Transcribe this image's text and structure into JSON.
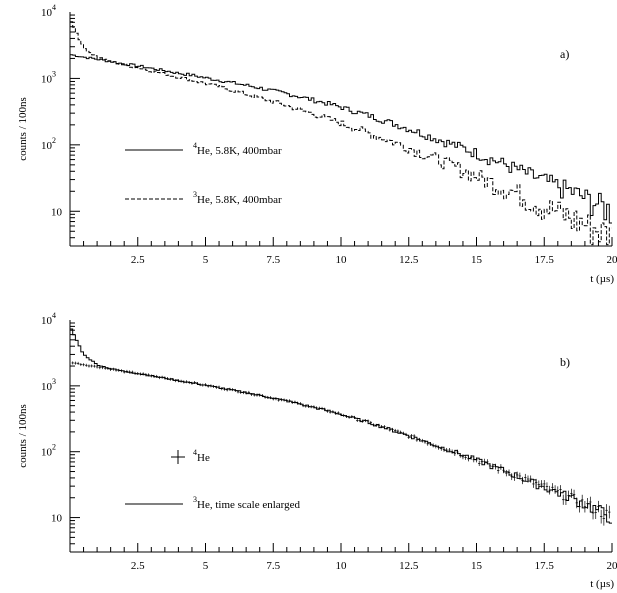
{
  "chart_data": [
    {
      "type": "line",
      "panel_label": "a)",
      "xlabel": "t (µs)",
      "ylabel": "counts / 100ns",
      "xlim": [
        0,
        20
      ],
      "ylim": [
        3,
        10000
      ],
      "yscale": "log",
      "grid": false,
      "legend_position": "center-left",
      "x_ticks": [
        "2.5",
        "5",
        "7.5",
        "10",
        "12.5",
        "15",
        "17.5",
        "20"
      ],
      "y_ticks": [
        {
          "value": 10,
          "base": "10",
          "exp": ""
        },
        {
          "value": 100,
          "base": "10",
          "exp": "2"
        },
        {
          "value": 1000,
          "base": "10",
          "exp": "3"
        },
        {
          "value": 10000,
          "base": "10",
          "exp": "4"
        }
      ],
      "series": [
        {
          "name_sup": "4",
          "name": "He, 5.8K, 400mbar",
          "style": "solid",
          "x": [
            0,
            0.5,
            1,
            1.5,
            2,
            2.5,
            3,
            3.5,
            4,
            4.5,
            5,
            5.5,
            6,
            6.5,
            7,
            7.5,
            8,
            8.5,
            9,
            9.5,
            10,
            10.5,
            11,
            11.5,
            12,
            12.5,
            13,
            13.5,
            14,
            14.5,
            15,
            15.5,
            16,
            16.5,
            17,
            17.5,
            18,
            18.5,
            19,
            19.5,
            20
          ],
          "values": [
            2300,
            2100,
            1950,
            1800,
            1650,
            1550,
            1420,
            1310,
            1200,
            1120,
            1020,
            940,
            860,
            790,
            720,
            650,
            590,
            530,
            470,
            420,
            370,
            320,
            280,
            240,
            205,
            175,
            148,
            125,
            106,
            90,
            75,
            62,
            52,
            43,
            35,
            29,
            24,
            20,
            16,
            13,
            10
          ]
        },
        {
          "name_sup": "3",
          "name": "He, 5.8K, 400mbar",
          "style": "dashed",
          "x": [
            0,
            0.5,
            1,
            1.5,
            2,
            2.5,
            3,
            3.5,
            4,
            4.5,
            5,
            5.5,
            6,
            6.5,
            7,
            7.5,
            8,
            8.5,
            9,
            9.5,
            10,
            10.5,
            11,
            11.5,
            12,
            12.5,
            13,
            13.5,
            14,
            14.5,
            15,
            15.5,
            16,
            16.5,
            17,
            17.5,
            18,
            18.5,
            19,
            19.5,
            20
          ],
          "values": [
            8000,
            2900,
            2100,
            1800,
            1600,
            1450,
            1300,
            1170,
            1050,
            940,
            840,
            750,
            660,
            580,
            510,
            445,
            390,
            335,
            290,
            248,
            212,
            180,
            152,
            128,
            108,
            90,
            75,
            62,
            51,
            42,
            34,
            28,
            23,
            19,
            15,
            12,
            9.8,
            8,
            6.5,
            5.3,
            4.3
          ]
        }
      ]
    },
    {
      "type": "line",
      "panel_label": "b)",
      "xlabel": "t (µs)",
      "ylabel": "counts / 100ns",
      "xlim": [
        0,
        20
      ],
      "ylim": [
        3,
        10000
      ],
      "yscale": "log",
      "grid": false,
      "legend_position": "center-left",
      "x_ticks": [
        "2.5",
        "5",
        "7.5",
        "10",
        "12.5",
        "15",
        "17.5",
        "20"
      ],
      "y_ticks": [
        {
          "value": 10,
          "base": "10",
          "exp": ""
        },
        {
          "value": 100,
          "base": "10",
          "exp": "2"
        },
        {
          "value": 1000,
          "base": "10",
          "exp": "3"
        },
        {
          "value": 10000,
          "base": "10",
          "exp": "4"
        }
      ],
      "series": [
        {
          "name_sup": "4",
          "name": "He",
          "style": "markers",
          "x": [
            0,
            0.5,
            1,
            1.5,
            2,
            2.5,
            3,
            3.5,
            4,
            4.5,
            5,
            5.5,
            6,
            6.5,
            7,
            7.5,
            8,
            8.5,
            9,
            9.5,
            10,
            10.5,
            11,
            11.5,
            12,
            12.5,
            13,
            13.5,
            14,
            14.5,
            15,
            15.5,
            16,
            16.5,
            17,
            17.5,
            18,
            18.5,
            19,
            19.5,
            20
          ],
          "values": [
            2300,
            2100,
            1950,
            1800,
            1650,
            1550,
            1420,
            1310,
            1200,
            1120,
            1020,
            940,
            860,
            790,
            720,
            650,
            590,
            530,
            470,
            420,
            370,
            320,
            280,
            240,
            205,
            175,
            148,
            125,
            106,
            90,
            75,
            62,
            52,
            43,
            35,
            29,
            24,
            20,
            16,
            13,
            10
          ]
        },
        {
          "name_sup": "3",
          "name": "He, time scale enlarged",
          "style": "solid",
          "x": [
            0,
            0.5,
            1,
            1.5,
            2,
            2.5,
            3,
            3.5,
            4,
            4.5,
            5,
            5.5,
            6,
            6.5,
            7,
            7.5,
            8,
            8.5,
            9,
            9.5,
            10,
            10.5,
            11,
            11.5,
            12,
            12.5,
            13,
            13.5,
            14,
            14.5,
            15,
            15.5,
            16,
            16.5,
            17,
            17.5,
            18,
            18.5,
            19,
            19.5,
            20
          ],
          "values": [
            8000,
            3000,
            2100,
            1830,
            1660,
            1540,
            1420,
            1310,
            1200,
            1110,
            1020,
            940,
            860,
            790,
            720,
            650,
            590,
            530,
            470,
            420,
            370,
            320,
            280,
            240,
            205,
            175,
            148,
            125,
            106,
            90,
            75,
            62,
            52,
            43,
            35,
            29,
            24,
            20,
            16,
            13,
            10
          ]
        }
      ]
    }
  ]
}
